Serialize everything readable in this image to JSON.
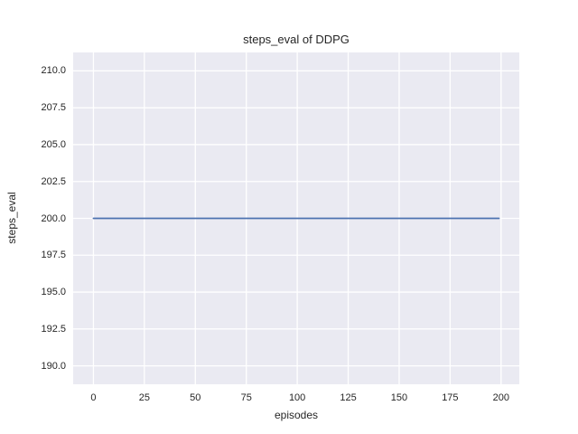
{
  "figure": {
    "background": "#ffffff",
    "axes_background": "#eaeaf2",
    "grid_color": "#ffffff",
    "text_color": "#262626"
  },
  "chart_data": {
    "type": "line",
    "title": "steps_eval of DDPG",
    "xlabel": "episodes",
    "ylabel": "steps_eval",
    "grid": true,
    "legend_position": "none",
    "xlim": [
      -9.95,
      208.95
    ],
    "ylim": [
      188.75,
      211.25
    ],
    "xticks": [
      0,
      25,
      50,
      75,
      100,
      125,
      150,
      175,
      200
    ],
    "xtick_labels": [
      "0",
      "25",
      "50",
      "75",
      "100",
      "125",
      "150",
      "175",
      "200"
    ],
    "yticks": [
      190.0,
      192.5,
      195.0,
      197.5,
      200.0,
      202.5,
      205.0,
      207.5,
      210.0
    ],
    "ytick_labels": [
      "190.0",
      "192.5",
      "195.0",
      "197.5",
      "200.0",
      "202.5",
      "205.0",
      "207.5",
      "210.0"
    ],
    "series": [
      {
        "name": "steps_eval",
        "color": "#4c72b0",
        "x": [
          0,
          199
        ],
        "y": [
          200,
          200
        ],
        "constant_value": 200
      }
    ]
  }
}
